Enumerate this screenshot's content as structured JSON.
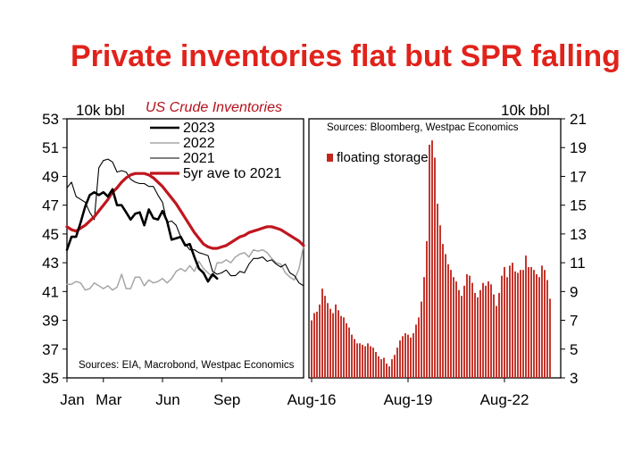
{
  "page": {
    "title": "Private inventories flat but SPR falling"
  },
  "chart_data": [
    {
      "type": "line",
      "subtitle": "US Crude Inventories",
      "ylabel": "10k bbl",
      "source": "Sources: EIA, Macrobond, Westpac Economics",
      "ylim": [
        35,
        53
      ],
      "yticks": [
        35,
        37,
        39,
        41,
        43,
        45,
        47,
        49,
        51,
        53
      ],
      "xlim": [
        1,
        53
      ],
      "xticks": [
        {
          "label": "Jan",
          "week": 1
        },
        {
          "label": "Mar",
          "week": 9
        },
        {
          "label": "Jun",
          "week": 22
        },
        {
          "label": "Sep",
          "week": 35
        }
      ],
      "legend_position": "top",
      "grid": false,
      "series": [
        {
          "name": "2023",
          "color": "#000000",
          "width": 2.6,
          "x": [
            1,
            2,
            3,
            4,
            5,
            6,
            7,
            8,
            9,
            10,
            11,
            12,
            13,
            14,
            15,
            16,
            17,
            18,
            19,
            20,
            21,
            22,
            23,
            24,
            25,
            26,
            27,
            28,
            29,
            30,
            31,
            32,
            33,
            34
          ],
          "y": [
            43.9,
            44.8,
            44.8,
            45.8,
            46.9,
            47.7,
            47.9,
            47.7,
            47.9,
            47.6,
            48.1,
            47.0,
            47.0,
            46.5,
            46.0,
            46.4,
            46.5,
            45.6,
            46.7,
            46.1,
            46.0,
            46.6,
            45.9,
            44.6,
            44.7,
            44.8,
            44.2,
            44.3,
            43.4,
            42.6,
            42.3,
            41.7,
            42.2,
            41.9
          ]
        },
        {
          "name": "2022",
          "color": "#a6a6a6",
          "width": 1.5,
          "x": [
            1,
            2,
            3,
            4,
            5,
            6,
            7,
            8,
            9,
            10,
            11,
            12,
            13,
            14,
            15,
            16,
            17,
            18,
            19,
            20,
            21,
            22,
            23,
            24,
            25,
            26,
            27,
            28,
            29,
            30,
            31,
            32,
            33,
            34,
            35,
            36,
            37,
            38,
            39,
            40,
            41,
            42,
            43,
            44,
            45,
            46,
            47,
            48,
            49,
            50,
            51,
            52,
            53
          ],
          "y": [
            41.5,
            41.5,
            41.7,
            41.6,
            41.1,
            41.2,
            41.6,
            41.4,
            41.2,
            41.4,
            41.1,
            41.3,
            42.2,
            41.2,
            41.2,
            42.0,
            42.0,
            41.4,
            41.8,
            41.6,
            41.7,
            41.9,
            41.6,
            41.9,
            42.4,
            42.6,
            42.4,
            42.8,
            42.4,
            43.1,
            42.6,
            42.3,
            42.0,
            43.0,
            43.0,
            43.2,
            43.0,
            43.4,
            43.6,
            43.7,
            43.4,
            43.9,
            43.8,
            43.9,
            43.7,
            43.3,
            43.0,
            42.9,
            42.3,
            42.0,
            41.8,
            42.6,
            44.2
          ]
        },
        {
          "name": "2021",
          "color": "#000000",
          "width": 1.1,
          "x": [
            1,
            2,
            3,
            4,
            5,
            6,
            7,
            8,
            9,
            10,
            11,
            12,
            13,
            14,
            15,
            16,
            17,
            18,
            19,
            20,
            21,
            22,
            23,
            24,
            25,
            26,
            27,
            28,
            29,
            30,
            31,
            32,
            33,
            34,
            35,
            36,
            37,
            38,
            39,
            40,
            41,
            42,
            43,
            44,
            45,
            46,
            47,
            48,
            49,
            50,
            51,
            52,
            53
          ],
          "y": [
            48.2,
            48.6,
            47.6,
            47.4,
            47.2,
            46.5,
            46.0,
            49.6,
            50.1,
            50.2,
            50.0,
            49.3,
            49.4,
            49.3,
            48.8,
            48.6,
            48.5,
            48.5,
            48.3,
            48.3,
            47.7,
            47.2,
            45.8,
            45.9,
            45.6,
            44.8,
            44.3,
            43.9,
            43.9,
            43.7,
            43.6,
            43.5,
            42.4,
            42.2,
            42.3,
            42.5,
            42.1,
            42.1,
            42.4,
            42.3,
            42.9,
            43.3,
            43.3,
            43.4,
            43.1,
            43.2,
            42.9,
            42.7,
            42.9,
            42.3,
            42.1,
            41.6,
            41.4
          ]
        },
        {
          "name": "5yr ave to 2021",
          "color": "#c0161e",
          "width": 3.2,
          "x": [
            1,
            2,
            3,
            4,
            5,
            6,
            7,
            8,
            9,
            10,
            11,
            12,
            13,
            14,
            15,
            16,
            17,
            18,
            19,
            20,
            21,
            22,
            23,
            24,
            25,
            26,
            27,
            28,
            29,
            30,
            31,
            32,
            33,
            34,
            35,
            36,
            37,
            38,
            39,
            40,
            41,
            42,
            43,
            44,
            45,
            46,
            47,
            48,
            49,
            50,
            51,
            52,
            53
          ],
          "y": [
            45.5,
            45.3,
            45.2,
            45.4,
            45.6,
            45.9,
            46.2,
            46.6,
            47.0,
            47.4,
            47.9,
            48.2,
            48.6,
            48.9,
            49.1,
            49.2,
            49.2,
            49.2,
            49.1,
            48.9,
            48.6,
            48.3,
            47.9,
            47.5,
            47.1,
            46.6,
            46.1,
            45.6,
            45.1,
            44.7,
            44.3,
            44.1,
            44.0,
            44.0,
            44.1,
            44.2,
            44.4,
            44.6,
            44.8,
            44.9,
            45.1,
            45.2,
            45.3,
            45.4,
            45.5,
            45.5,
            45.4,
            45.3,
            45.1,
            44.9,
            44.7,
            44.5,
            44.2
          ]
        }
      ]
    },
    {
      "type": "bar",
      "ylabel": "10k bbl",
      "source": "Sources: Bloomberg, Westpac Economics",
      "ylim": [
        3,
        21
      ],
      "yticks": [
        3,
        5,
        7,
        9,
        11,
        13,
        15,
        17,
        19,
        21
      ],
      "xlim": [
        -1,
        93
      ],
      "xticks": [
        {
          "label": "Aug-16",
          "index": 0
        },
        {
          "label": "Aug-19",
          "index": 36
        },
        {
          "label": "Aug-22",
          "index": 72
        }
      ],
      "legend_position": "top-left",
      "grid": false,
      "series": [
        {
          "name": "floating storage",
          "color": "#c0281e",
          "values": [
            7.0,
            7.5,
            7.6,
            8.1,
            9.2,
            8.7,
            8.2,
            7.8,
            7.5,
            8.1,
            7.7,
            7.3,
            7.2,
            6.8,
            6.5,
            6.0,
            5.7,
            5.4,
            5.4,
            5.3,
            5.2,
            5.4,
            5.2,
            5.1,
            4.8,
            4.5,
            4.3,
            4.4,
            4.0,
            3.8,
            4.3,
            4.6,
            5.1,
            5.6,
            5.9,
            6.1,
            6.0,
            5.8,
            6.1,
            6.7,
            7.2,
            8.3,
            10.0,
            12.5,
            19.2,
            19.5,
            18.3,
            15.1,
            13.6,
            12.3,
            11.6,
            10.9,
            10.5,
            10.0,
            9.7,
            9.1,
            8.7,
            9.4,
            10.2,
            10.1,
            9.6,
            8.9,
            8.6,
            9.1,
            9.6,
            9.4,
            9.7,
            9.5,
            8.8,
            8.0,
            8.9,
            10.1,
            10.7,
            10.0,
            10.8,
            11.0,
            10.4,
            10.3,
            10.5,
            10.5,
            11.5,
            10.7,
            10.7,
            10.5,
            10.2,
            10.0,
            10.8,
            10.5,
            9.8,
            8.5
          ]
        }
      ]
    }
  ]
}
